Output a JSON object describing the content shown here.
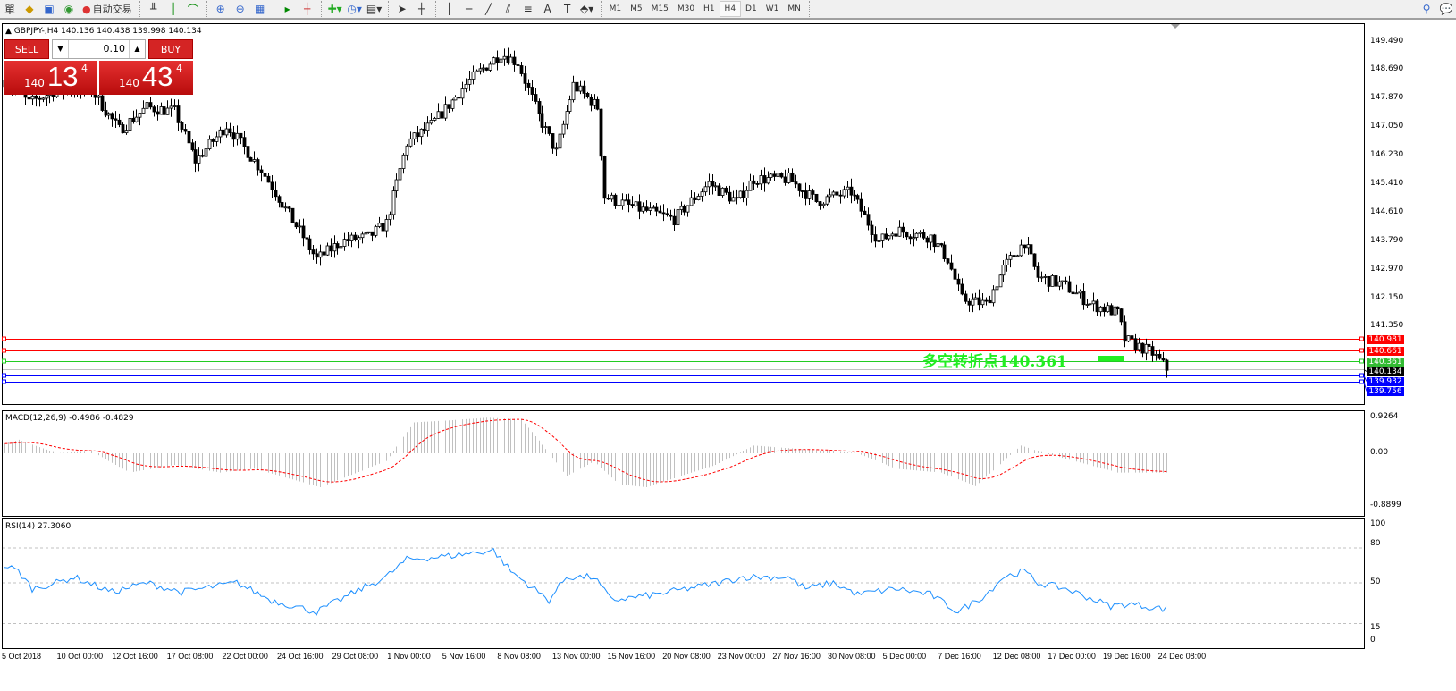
{
  "toolbar": {
    "menu_fragment": "單",
    "auto_trade_label": "自动交易",
    "timeframes": [
      "M1",
      "M5",
      "M15",
      "M30",
      "H1",
      "H4",
      "D1",
      "W1",
      "MN"
    ],
    "active_timeframe": "H4"
  },
  "chart": {
    "info": "GBPJPY-,H4  140.136 140.438 139.998 140.134",
    "symbol": "GBPJPY-",
    "timeframe": "H4",
    "ohlc": {
      "open": 140.136,
      "high": 140.438,
      "low": 139.998,
      "close": 140.134
    }
  },
  "trade_panel": {
    "sell_label": "SELL",
    "buy_label": "BUY",
    "lot": "0.10",
    "bid": {
      "prefix": "140",
      "big": "13",
      "sup": "4"
    },
    "ask": {
      "prefix": "140",
      "big": "43",
      "sup": "4"
    }
  },
  "price_axis": [
    "149.490",
    "148.690",
    "147.870",
    "147.050",
    "146.230",
    "145.410",
    "144.610",
    "143.790",
    "142.970",
    "142.150",
    "141.350"
  ],
  "hlines": [
    {
      "price": "140.981",
      "color": "#ff0000"
    },
    {
      "price": "140.661",
      "color": "#ff0000"
    },
    {
      "price": "140.361",
      "color": "#22cc22"
    },
    {
      "price": "140.134",
      "color": "#000000",
      "current": true
    },
    {
      "price": "139.932",
      "color": "#0000ff"
    },
    {
      "price": "139.756",
      "color": "#0000ff"
    }
  ],
  "pivot_label": "多空转折点140.361",
  "macd": {
    "label": "MACD(12,26,9) -0.4986 -0.4829",
    "axis": [
      "0.9264",
      "0.00",
      "-0.8899"
    ]
  },
  "rsi": {
    "label": "RSI(14) 27.3060",
    "axis": [
      "100",
      "80",
      "50",
      "15",
      "0"
    ]
  },
  "time_axis": [
    "5 Oct 2018",
    "10 Oct 00:00",
    "12 Oct 16:00",
    "17 Oct 08:00",
    "22 Oct 00:00",
    "24 Oct 16:00",
    "29 Oct 08:00",
    "1 Nov 00:00",
    "5 Nov 16:00",
    "8 Nov 08:00",
    "13 Nov 00:00",
    "15 Nov 16:00",
    "20 Nov 08:00",
    "23 Nov 00:00",
    "27 Nov 16:00",
    "30 Nov 08:00",
    "5 Dec 00:00",
    "7 Dec 16:00",
    "12 Dec 08:00",
    "17 Dec 00:00",
    "19 Dec 16:00",
    "24 Dec 08:00"
  ],
  "chart_data": {
    "type": "candlestick",
    "price_range": [
      139.6,
      149.9
    ],
    "close_path": [
      [
        0,
        148.39
      ],
      [
        7,
        147.75
      ],
      [
        15,
        148.13
      ],
      [
        25,
        148.1
      ],
      [
        33,
        146.98
      ],
      [
        41,
        147.62
      ],
      [
        49,
        147.5
      ],
      [
        55,
        146.09
      ],
      [
        64,
        147.11
      ],
      [
        74,
        145.83
      ],
      [
        82,
        144.55
      ],
      [
        90,
        143.27
      ],
      [
        97,
        143.78
      ],
      [
        105,
        143.91
      ],
      [
        110,
        144.3
      ],
      [
        116,
        146.6
      ],
      [
        123,
        147.11
      ],
      [
        134,
        148.39
      ],
      [
        143,
        149.16
      ],
      [
        148,
        148.9
      ],
      [
        154,
        147.37
      ],
      [
        159,
        146.34
      ],
      [
        164,
        148.26
      ],
      [
        171,
        147.62
      ],
      [
        173,
        145.06
      ],
      [
        180,
        144.8
      ],
      [
        193,
        144.42
      ],
      [
        203,
        145.45
      ],
      [
        211,
        144.93
      ],
      [
        216,
        145.57
      ],
      [
        226,
        145.57
      ],
      [
        234,
        144.93
      ],
      [
        244,
        145.2
      ],
      [
        252,
        143.78
      ],
      [
        257,
        144.1
      ],
      [
        267,
        143.91
      ],
      [
        272,
        143.27
      ],
      [
        276,
        142.12
      ],
      [
        283,
        141.99
      ],
      [
        288,
        143.01
      ],
      [
        294,
        143.78
      ],
      [
        298,
        142.76
      ],
      [
        306,
        142.5
      ],
      [
        313,
        141.99
      ],
      [
        321,
        141.73
      ],
      [
        323,
        140.97
      ],
      [
        331,
        140.58
      ],
      [
        335,
        140.134
      ]
    ],
    "macd_hist_path": [
      [
        0,
        0.25
      ],
      [
        4,
        0.35
      ],
      [
        15,
        0.0
      ],
      [
        25,
        0.05
      ],
      [
        36,
        -0.5
      ],
      [
        49,
        -0.3
      ],
      [
        62,
        -0.5
      ],
      [
        72,
        -0.4
      ],
      [
        91,
        -0.88
      ],
      [
        110,
        -0.2
      ],
      [
        118,
        0.8
      ],
      [
        128,
        0.85
      ],
      [
        139,
        0.92
      ],
      [
        149,
        0.88
      ],
      [
        157,
        0.0
      ],
      [
        162,
        -0.6
      ],
      [
        170,
        -0.2
      ],
      [
        177,
        -0.8
      ],
      [
        185,
        -0.88
      ],
      [
        205,
        -0.3
      ],
      [
        216,
        0.2
      ],
      [
        231,
        0.1
      ],
      [
        246,
        0.0
      ],
      [
        257,
        -0.4
      ],
      [
        270,
        -0.5
      ],
      [
        280,
        -0.85
      ],
      [
        293,
        0.2
      ],
      [
        300,
        0.0
      ],
      [
        321,
        -0.5
      ],
      [
        335,
        -0.5
      ]
    ],
    "rsi_path": [
      [
        0,
        65
      ],
      [
        4,
        60
      ],
      [
        8,
        45
      ],
      [
        15,
        50
      ],
      [
        20,
        55
      ],
      [
        31,
        42
      ],
      [
        41,
        50
      ],
      [
        51,
        42
      ],
      [
        67,
        50
      ],
      [
        77,
        35
      ],
      [
        90,
        25
      ],
      [
        103,
        45
      ],
      [
        110,
        55
      ],
      [
        116,
        70
      ],
      [
        128,
        73
      ],
      [
        141,
        78
      ],
      [
        146,
        60
      ],
      [
        157,
        35
      ],
      [
        162,
        55
      ],
      [
        170,
        55
      ],
      [
        175,
        35
      ],
      [
        188,
        40
      ],
      [
        206,
        50
      ],
      [
        213,
        55
      ],
      [
        226,
        55
      ],
      [
        231,
        45
      ],
      [
        239,
        50
      ],
      [
        246,
        40
      ],
      [
        257,
        45
      ],
      [
        267,
        40
      ],
      [
        275,
        25
      ],
      [
        283,
        40
      ],
      [
        288,
        55
      ],
      [
        294,
        60
      ],
      [
        298,
        50
      ],
      [
        306,
        45
      ],
      [
        319,
        30
      ],
      [
        324,
        32
      ],
      [
        335,
        27.3
      ]
    ],
    "rsi_levels": [
      80,
      50,
      15
    ]
  }
}
